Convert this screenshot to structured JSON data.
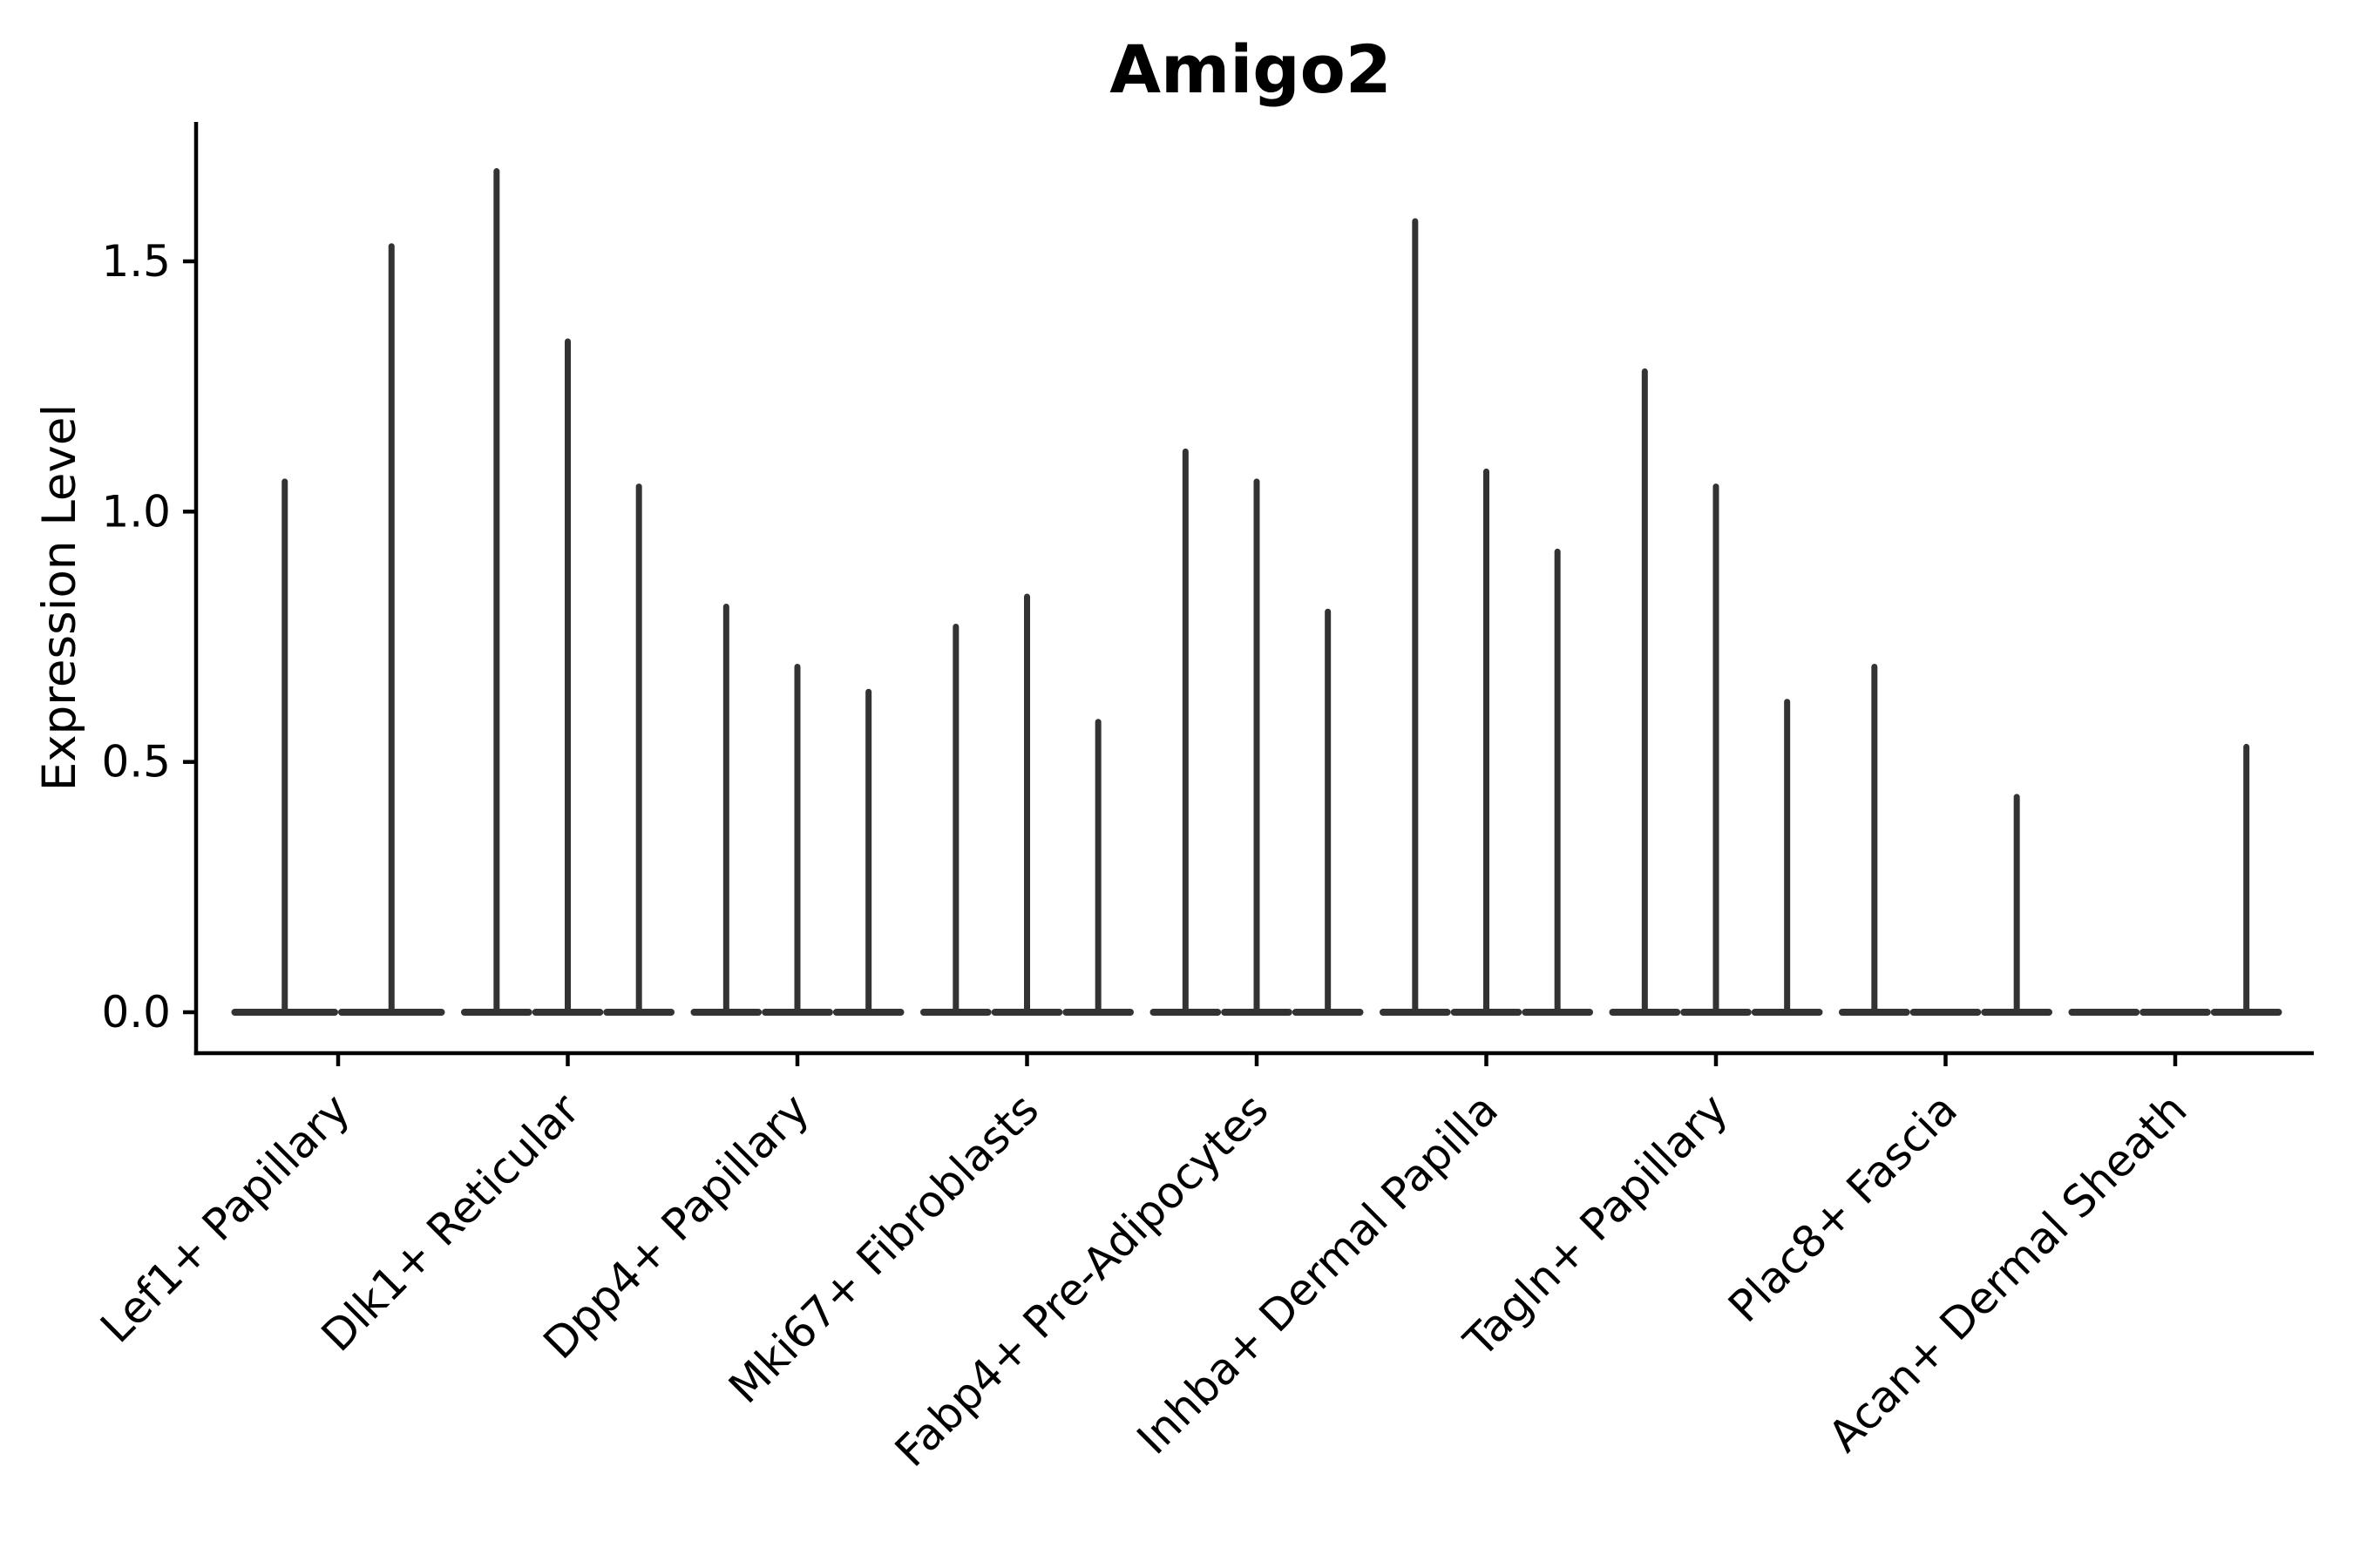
{
  "figure": {
    "title": "Amigo2",
    "ylabel": "Expression Level"
  },
  "style": {
    "background": "#ffffff",
    "axis_color": "#000000",
    "violin_ink": "#333333"
  },
  "chart_data": {
    "type": "violin",
    "title": "Amigo2",
    "xlabel": "",
    "ylabel": "Expression Level",
    "ylim": [
      -0.09,
      1.78
    ],
    "yticks": [
      0.0,
      0.5,
      1.0,
      1.5
    ],
    "ytick_labels": [
      "0.0",
      "0.5",
      "1.0",
      "1.5"
    ],
    "grid": false,
    "legend": "none",
    "x_tick_rotation_deg": 45,
    "categories": [
      "Lef1+ Papillary",
      "Dlk1+ Reticular",
      "Dpp4+ Papillary",
      "Mki67+ Fibroblasts",
      "Fabp4+ Pre-Adipocytes",
      "Inhba+ Dermal Papilla",
      "Tagln+ Papillary",
      "Plac8+ Fascia",
      "Acan+ Dermal Sheath"
    ],
    "series": [
      {
        "category": "Lef1+ Papillary",
        "violin_max_values": [
          1.06,
          1.53
        ]
      },
      {
        "category": "Dlk1+ Reticular",
        "violin_max_values": [
          1.68,
          1.34,
          1.05
        ]
      },
      {
        "category": "Dpp4+ Papillary",
        "violin_max_values": [
          0.81,
          0.69,
          0.64
        ]
      },
      {
        "category": "Mki67+ Fibroblasts",
        "violin_max_values": [
          0.77,
          0.83,
          0.58
        ]
      },
      {
        "category": "Fabp4+ Pre-Adipocytes",
        "violin_max_values": [
          1.12,
          1.06,
          0.8
        ]
      },
      {
        "category": "Inhba+ Dermal Papilla",
        "violin_max_values": [
          1.58,
          1.08,
          0.92
        ]
      },
      {
        "category": "Tagln+ Papillary",
        "violin_max_values": [
          1.28,
          1.05,
          0.62
        ]
      },
      {
        "category": "Plac8+ Fascia",
        "violin_max_values": [
          0.69,
          0.0,
          0.43
        ]
      },
      {
        "category": "Acan+ Dermal Sheath",
        "violin_max_values": [
          0.0,
          0.0,
          0.53
        ]
      }
    ],
    "note": "Each category shows very thin violins (expression mostly 0): a flat lens at y=0 per violin plus a thin vertical density spike whose top is the listed max value. 0.0 means a flat (all-zero) violin."
  }
}
